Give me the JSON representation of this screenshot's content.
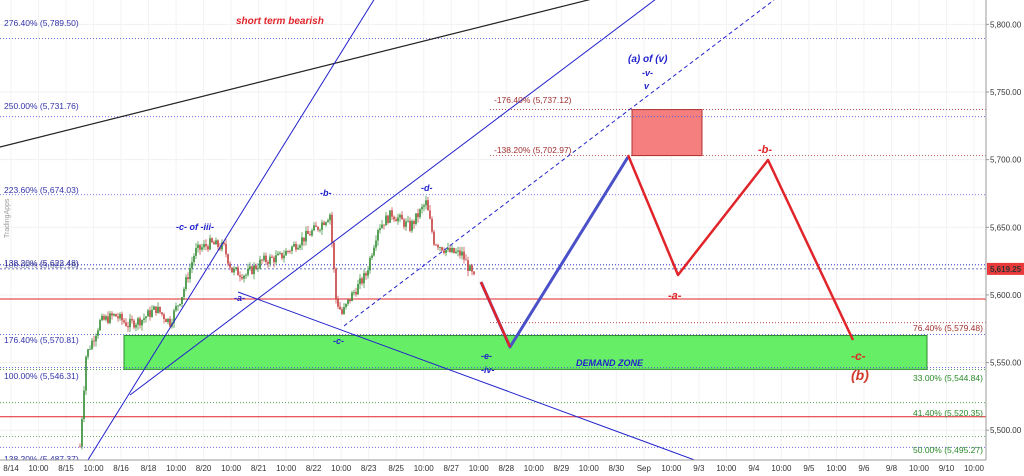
{
  "chart_data": {
    "type": "candlestick",
    "title": "",
    "watermark": "TradingApps",
    "colors": {
      "up": "#2f8a2f",
      "down": "#c43c3c",
      "blue_line": "#2222cc",
      "red_line": "#e0242a",
      "black_line": "#222222",
      "demand_zone": "#66ee66",
      "target_box": "#f57f7f",
      "price_badge": "#e83a3a"
    },
    "y_axis": {
      "min": 5478,
      "max": 5818,
      "tick_values": [
        5500,
        5550,
        5600,
        5650,
        5700,
        5750,
        5800
      ],
      "tick_labels": [
        "5,500.00",
        "5,550.00",
        "5,600.00",
        "5,650.00",
        "5,700.00",
        "5,750.00",
        "5,800.00"
      ],
      "current_price": "5,619.25"
    },
    "x_axis": {
      "tick_labels": [
        "8/14",
        "10:00",
        "8/15",
        "10:00",
        "8/16",
        "8/18",
        "10:00",
        "8/20",
        "10:00",
        "8/21",
        "10:00",
        "8/22",
        "10:00",
        "8/23",
        "8/25",
        "10:00",
        "8/27",
        "10:00",
        "8/28",
        "10:00",
        "8/29",
        "10:00",
        "8/30",
        "Sep",
        "10:00",
        "9/3",
        "10:00",
        "9/4",
        "10:00",
        "9/5",
        "10:00",
        "9/6",
        "9/8",
        "10:00",
        "9/10",
        "10:00"
      ]
    },
    "fib_levels_blue": [
      {
        "label": "276.40% (5,789.50)",
        "value": 5789.5
      },
      {
        "label": "250.00% (5,731.76)",
        "value": 5731.76
      },
      {
        "label": "223.60% (5,674.03)",
        "value": 5674.03
      },
      {
        "label": "138.20% (5,622.48)",
        "value": 5622.48
      },
      {
        "label": "100.00% (5,622.18)",
        "value": 5622.18
      },
      {
        "label": "176.40% (5,570.81)",
        "value": 5570.81
      },
      {
        "label": "100.00% (5,546.31)",
        "value": 5546.31
      },
      {
        "label": "138.20% (5,487.37)",
        "value": 5487.37
      }
    ],
    "fib_levels_red": [
      {
        "label": "-176.40% (5,737.12)",
        "value": 5737.12
      },
      {
        "label": "-138.20% (5,702.97)",
        "value": 5702.97
      },
      {
        "label": "76.40% (5,579.48)",
        "value": 5579.48
      }
    ],
    "fib_levels_green": [
      {
        "label": "33.00% (5,544.84)",
        "value": 5544.84
      },
      {
        "label": "41.40% (5,520.35)",
        "value": 5520.35
      },
      {
        "label": "50.00% (5,495.27)",
        "value": 5495.27
      }
    ],
    "horizontal_red_lines": [
      5597,
      5510
    ],
    "zones": [
      {
        "label": "DEMAND ZONE",
        "top": 5570,
        "bottom": 5545
      },
      {
        "label": "",
        "top": 5737,
        "bottom": 5703
      }
    ],
    "wave_labels": {
      "blue": [
        "-c- of -iii-",
        "-a-",
        "-b-",
        "-c-",
        "-d-",
        "-e-",
        "-iv-",
        "(a) of (v)",
        "-v-",
        "v"
      ],
      "red": [
        "short term bearish",
        "-a-",
        "-b-",
        "-c-",
        "(b)"
      ]
    }
  }
}
